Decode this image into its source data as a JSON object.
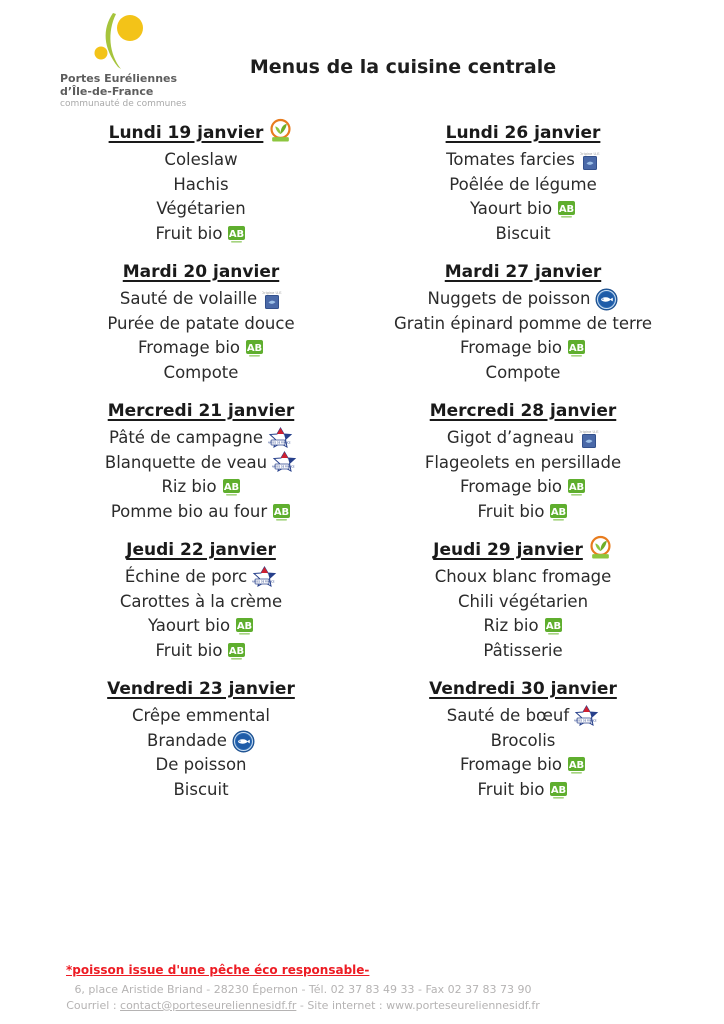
{
  "colors": {
    "accent_red": "#ed1c24",
    "ab_green": "#5fae2e",
    "logo_green": "#a6c43c",
    "logo_yellow": "#f3c318",
    "origin_eu_blue": "#4a69a8",
    "fish_blue": "#2d6cb5",
    "footer_gray": "#b5b3b3"
  },
  "header": {
    "org_line1": "Portes Euréliennes",
    "org_line2": "d’Île-de-France",
    "org_line3": "communauté de communes",
    "title": "Menus de la cuisine centrale"
  },
  "icons": {
    "origin_eu_label": "Origine U.E.",
    "ab_label": "AB",
    "french_meat_label": "VIANDES DE FRANCE"
  },
  "menus": {
    "columns": [
      {
        "days": [
          {
            "date": "Lundi 19 janvier",
            "date_icon": "vegetarian-icon",
            "items": [
              {
                "text": "Coleslaw",
                "icon": null
              },
              {
                "text": "Hachis",
                "icon": null
              },
              {
                "text": "Végétarien",
                "icon": null
              },
              {
                "text": "Fruit bio",
                "icon": "ab-organic-icon"
              }
            ]
          },
          {
            "date": "Mardi 20 janvier",
            "date_icon": null,
            "items": [
              {
                "text": "Sauté de volaille",
                "icon": "origin-eu-icon"
              },
              {
                "text": "Purée de patate douce",
                "icon": null
              },
              {
                "text": "Fromage bio",
                "icon": "ab-organic-icon"
              },
              {
                "text": "Compote",
                "icon": null
              }
            ]
          },
          {
            "date": "Mercredi 21 janvier",
            "date_icon": null,
            "items": [
              {
                "text": "Pâté de campagne",
                "icon": "french-meat-icon"
              },
              {
                "text": "Blanquette de veau",
                "icon": "french-meat-icon"
              },
              {
                "text": "Riz bio",
                "icon": "ab-organic-icon"
              },
              {
                "text": "Pomme bio au four",
                "icon": "ab-organic-icon"
              }
            ]
          },
          {
            "date": "Jeudi 22 janvier",
            "date_icon": null,
            "items": [
              {
                "text": "Échine de porc",
                "icon": "french-meat-icon"
              },
              {
                "text": "Carottes à la crème",
                "icon": null
              },
              {
                "text": "Yaourt bio",
                "icon": "ab-organic-icon"
              },
              {
                "text": "Fruit bio",
                "icon": "ab-organic-icon"
              }
            ]
          },
          {
            "date": "Vendredi 23 janvier",
            "date_icon": null,
            "items": [
              {
                "text": "Crêpe emmental",
                "icon": null
              },
              {
                "text": "Brandade",
                "icon": "responsible-fishing-icon"
              },
              {
                "text": "De poisson",
                "icon": null
              },
              {
                "text": "Biscuit",
                "icon": null
              }
            ]
          }
        ]
      },
      {
        "days": [
          {
            "date": "Lundi 26 janvier",
            "date_icon": null,
            "items": [
              {
                "text": "Tomates farcies",
                "icon": "origin-eu-icon"
              },
              {
                "text": "Poêlée de légume",
                "icon": null
              },
              {
                "text": "Yaourt bio",
                "icon": "ab-organic-icon"
              },
              {
                "text": "Biscuit",
                "icon": null
              }
            ]
          },
          {
            "date": "Mardi 27 janvier",
            "date_icon": null,
            "items": [
              {
                "text": "Nuggets de poisson",
                "icon": "responsible-fishing-icon"
              },
              {
                "text": "Gratin épinard pomme de terre",
                "icon": null
              },
              {
                "text": "Fromage bio",
                "icon": "ab-organic-icon"
              },
              {
                "text": "Compote",
                "icon": null
              }
            ]
          },
          {
            "date": "Mercredi 28 janvier",
            "date_icon": null,
            "items": [
              {
                "text": "Gigot d’agneau",
                "icon": "origin-eu-icon"
              },
              {
                "text": "Flageolets en persillade",
                "icon": null
              },
              {
                "text": "Fromage bio",
                "icon": "ab-organic-icon"
              },
              {
                "text": "Fruit bio",
                "icon": "ab-organic-icon"
              }
            ]
          },
          {
            "date": "Jeudi 29 janvier",
            "date_icon": "vegetarian-icon",
            "items": [
              {
                "text": "Choux blanc fromage",
                "icon": null
              },
              {
                "text": "Chili végétarien",
                "icon": null
              },
              {
                "text": "Riz bio",
                "icon": "ab-organic-icon"
              },
              {
                "text": "Pâtisserie",
                "icon": null
              }
            ]
          },
          {
            "date": "Vendredi 30 janvier",
            "date_icon": null,
            "items": [
              {
                "text": "Sauté de bœuf",
                "icon": "french-meat-icon"
              },
              {
                "text": "Brocolis",
                "icon": null
              },
              {
                "text": "Fromage bio",
                "icon": "ab-organic-icon"
              },
              {
                "text": "Fruit bio",
                "icon": "ab-organic-icon"
              }
            ]
          }
        ]
      }
    ]
  },
  "footer": {
    "footnote": "*poisson issue d'une pêche éco responsable-",
    "address_line": "6, place Aristide Briand - 28230 Épernon - Tél. 02 37 83 49 33 - Fax 02 37 83 73 90",
    "contact_prefix": "Courriel : ",
    "contact_email": "contact@porteseureliennesidf.fr",
    "separator": "  -  ",
    "site_prefix": "Site internet : ",
    "site_url": "www.porteseureliennesidf.fr"
  }
}
